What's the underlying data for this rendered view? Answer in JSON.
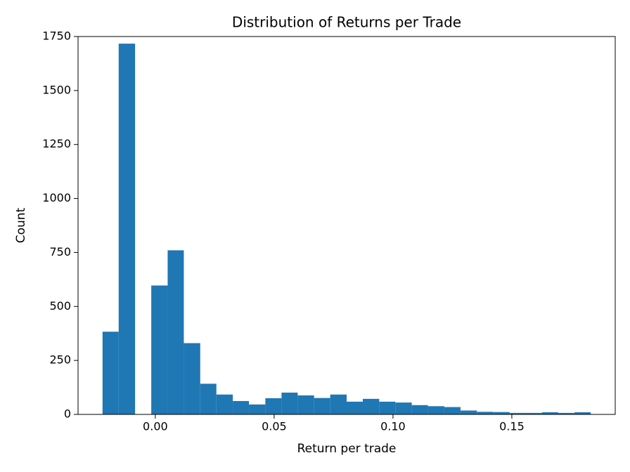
{
  "chart_data": {
    "type": "histogram",
    "title": "Distribution of Returns per Trade",
    "x_label": "Return per trade",
    "y_label": "Count",
    "color": "#1f77b4",
    "bins": [
      -0.0222,
      -0.0154,
      -0.0085,
      -0.0017,
      0.0052,
      0.012,
      0.0189,
      0.0257,
      0.0326,
      0.0394,
      0.0463,
      0.0531,
      0.0599,
      0.0668,
      0.0736,
      0.0805,
      0.0873,
      0.0942,
      0.101,
      0.1079,
      0.1147,
      0.1216,
      0.1284,
      0.1353,
      0.1421,
      0.149,
      0.1558,
      0.1627,
      0.1695,
      0.1764,
      0.1832
    ],
    "values": [
      383,
      1717,
      0,
      597,
      760,
      330,
      142,
      92,
      62,
      46,
      75,
      101,
      88,
      76,
      92,
      59,
      72,
      59,
      55,
      43,
      38,
      34,
      18,
      12,
      11,
      7,
      7,
      10,
      7,
      10
    ],
    "xlim": [
      -0.0325,
      0.1935
    ],
    "xticks": [
      {
        "value": 0,
        "label": "0.00"
      },
      {
        "value": 0.05,
        "label": "0.05"
      },
      {
        "value": 0.1,
        "label": "0.10"
      },
      {
        "value": 0.15,
        "label": "0.15"
      }
    ],
    "ylim": [
      0,
      1750
    ],
    "yticks": [
      0,
      250,
      500,
      750,
      1000,
      1250,
      1500,
      1750
    ],
    "grid": false
  }
}
